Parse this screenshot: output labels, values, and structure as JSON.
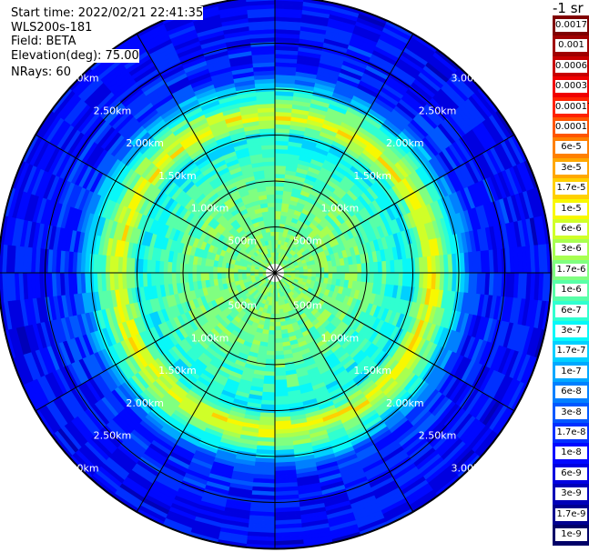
{
  "header": {
    "start_time": "Start time: 2022/02/21 22:41:35",
    "instrument": "WLS200s-181",
    "field": "Field: BETA",
    "elevation": "Elevation(deg): 75.00",
    "nrays": "NRays: 60"
  },
  "colorbar": {
    "unit": "-1 sr",
    "labels": [
      "0.0017",
      "0.001",
      "0.0006",
      "0.0003",
      "0.00017",
      "0.0001",
      "6e-5",
      "3e-5",
      "1.7e-5",
      "1e-5",
      "6e-6",
      "3e-6",
      "1.7e-6",
      "1e-6",
      "6e-7",
      "3e-7",
      "1.7e-7",
      "1e-7",
      "6e-8",
      "3e-8",
      "1.7e-8",
      "1e-8",
      "6e-9",
      "3e-9",
      "1.7e-9",
      "1e-9"
    ],
    "colors": [
      "#800000",
      "#a00000",
      "#c80000",
      "#f00000",
      "#ff2200",
      "#ff5500",
      "#ff8000",
      "#ffa800",
      "#ffd000",
      "#f8f800",
      "#d0ff28",
      "#a8ff50",
      "#80ff80",
      "#58ffa8",
      "#30ffd0",
      "#08f8f8",
      "#00d0ff",
      "#00a8ff",
      "#0080ff",
      "#0058ff",
      "#0030ff",
      "#0008ff",
      "#0000e0",
      "#0000b8",
      "#000090",
      "#000068"
    ]
  },
  "chart_data": {
    "type": "heatmap",
    "projection": "polar-ppi",
    "nrays": 60,
    "range_rings": [
      "500m",
      "1.00km",
      "1.50km",
      "2.00km",
      "2.50km",
      "3.00km"
    ],
    "radial_profile": [
      {
        "range_km": 0.1,
        "value": 2e-06
      },
      {
        "range_km": 0.5,
        "value": 1.5e-06
      },
      {
        "range_km": 1.0,
        "value": 1.2e-06
      },
      {
        "range_km": 1.5,
        "value": 3e-07
      },
      {
        "range_km": 1.7,
        "value": 1e-05
      },
      {
        "range_km": 1.85,
        "value": 1.5e-06
      },
      {
        "range_km": 2.2,
        "value": 1.5e-08
      },
      {
        "range_km": 3.0,
        "value": 8e-09
      },
      {
        "range_km": 3.4,
        "value": 5e-09
      }
    ]
  }
}
